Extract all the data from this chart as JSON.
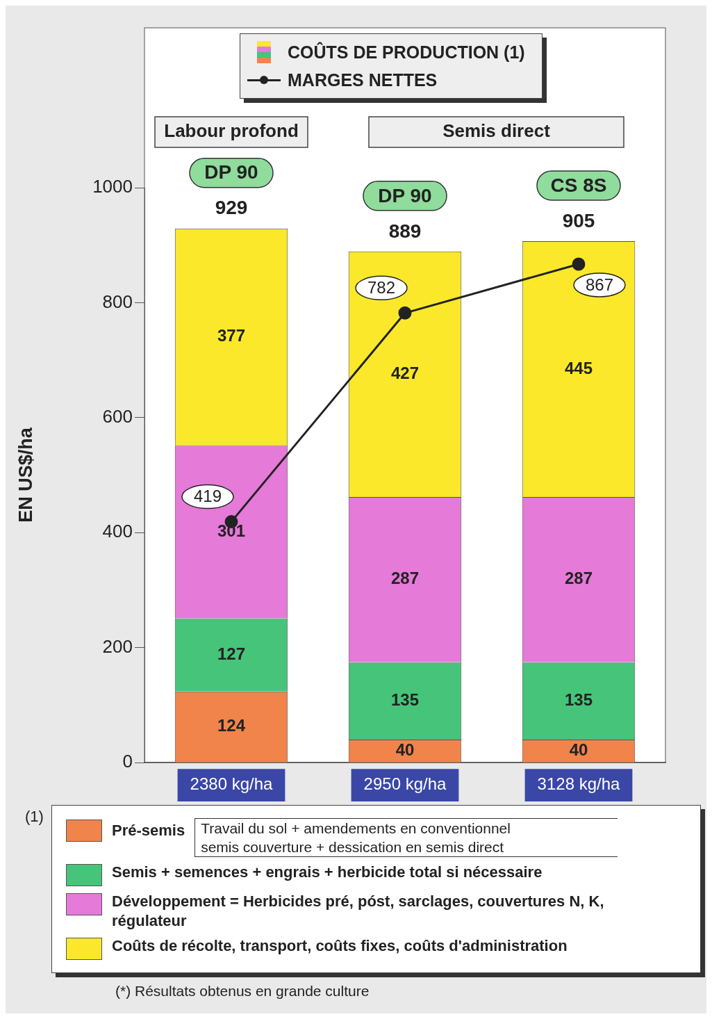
{
  "chart_data": {
    "type": "bar",
    "stacked": true,
    "ylabel": "EN US$/ha",
    "categories": [
      "2380 kg/ha",
      "2950 kg/ha",
      "3128 kg/ha"
    ],
    "series": [
      {
        "name": "Pré-semis",
        "color": "#f0844a",
        "values": [
          124,
          40,
          40
        ]
      },
      {
        "name": "Semis + semences + engrais + herbicide total si nécessaire",
        "color": "#46c47a",
        "values": [
          127,
          135,
          135
        ]
      },
      {
        "name": "Développement = Herbicides pré, póst, sarclages, couvertures N, K, régulateur",
        "color": "#e57ad8",
        "values": [
          301,
          287,
          287
        ]
      },
      {
        "name": "Coûts de récolte, transport, coûts fixes, coûts d'administration",
        "color": "#fbe82a",
        "values": [
          377,
          427,
          445
        ]
      },
      {
        "name": "MARGES NETTES",
        "type": "line",
        "color": "#222222",
        "values": [
          419,
          782,
          867
        ],
        "marker": "circle",
        "line_style": "solid"
      }
    ],
    "data_labels": true,
    "totals": [
      "929",
      "889",
      "905"
    ],
    "ylim": [
      0,
      1000
    ],
    "yticks": [
      0,
      200,
      400,
      600,
      800,
      1000
    ],
    "legend": "bottom",
    "annotations": [
      "COÛTS DE PRODUCTION (1)",
      "Labour profond",
      "Semis direct",
      "Travail du sol + amendements en conventionnel",
      "semis couverture + dessication en semis direct",
      "(1)",
      "(*) Résultats obtenus en grande culture",
      "DP 90",
      "DP 90",
      "CS 8S"
    ]
  }
}
